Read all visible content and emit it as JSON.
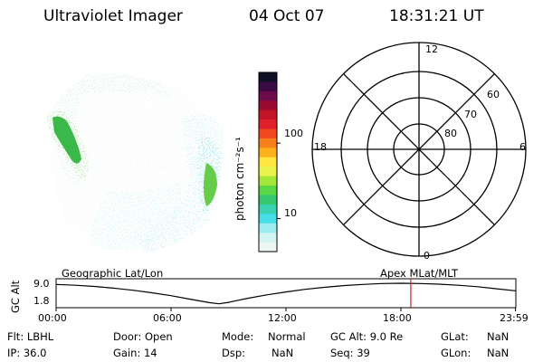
{
  "header": {
    "instrument": "Ultraviolet Imager",
    "date": "04 Oct 07",
    "time": "18:31:21 UT"
  },
  "colorbar": {
    "unit_label": "photon cm⁻²s⁻¹",
    "tick_labels": [
      "100",
      "10"
    ],
    "colors": [
      "#101028",
      "#3a0a45",
      "#6c0a4a",
      "#9a0a30",
      "#c21426",
      "#e0202a",
      "#f24a20",
      "#f7801a",
      "#fbb21a",
      "#ffe640",
      "#e8f24a",
      "#a6e83a",
      "#58d844",
      "#34c870",
      "#3ad2b0",
      "#46dce8",
      "#9aecf0",
      "#d2f4f2",
      "#eef6f4"
    ],
    "label_10_index": 15,
    "label_100_index": 7
  },
  "polar_grid": {
    "mlt_labels": {
      "top": "12",
      "left": "18",
      "right": "6",
      "bottom": "0"
    },
    "lat_labels": [
      "60",
      "70",
      "80"
    ]
  },
  "timeline": {
    "left_title": "Geographic Lat/Lon",
    "right_title": "Apex MLat/MLT",
    "axis_label": "GC Alt",
    "y_ticks": [
      "9.0",
      "1.8"
    ],
    "x_ticks": [
      "00:00",
      "06:00",
      "12:00",
      "18:00",
      "23:59"
    ],
    "marker_time": "18:31",
    "marker_color": "#cc2222",
    "altitude_profile": {
      "time_hours": [
        0,
        1,
        2,
        3,
        4,
        5,
        6,
        7,
        8,
        8.5,
        9,
        9.5,
        10,
        11,
        12,
        13,
        14,
        15,
        16,
        17,
        18,
        19,
        20,
        21,
        22,
        23,
        23.98
      ],
      "gc_alt_re": [
        8.6,
        8.3,
        7.9,
        7.3,
        6.6,
        5.7,
        4.7,
        3.5,
        2.3,
        1.9,
        2.4,
        3.1,
        3.8,
        5.0,
        6.0,
        6.9,
        7.6,
        8.2,
        8.6,
        8.9,
        9.0,
        8.9,
        8.7,
        8.3,
        7.8,
        7.1,
        6.4
      ]
    }
  },
  "info": {
    "flt": "Flt: LBHL",
    "ip": "IP: 36.0",
    "door": "Door: Open",
    "gain": "Gain: 14",
    "mode_label": "Mode:",
    "mode_value": "Normal",
    "dsp_label": "Dsp:",
    "dsp_value": "NaN",
    "gcalt": "GC Alt: 9.0 Re",
    "seq": "Seq: 39",
    "glat_label": "GLat:",
    "glat_value": "NaN",
    "glon_label": "GLon:",
    "glon_value": "NaN"
  }
}
